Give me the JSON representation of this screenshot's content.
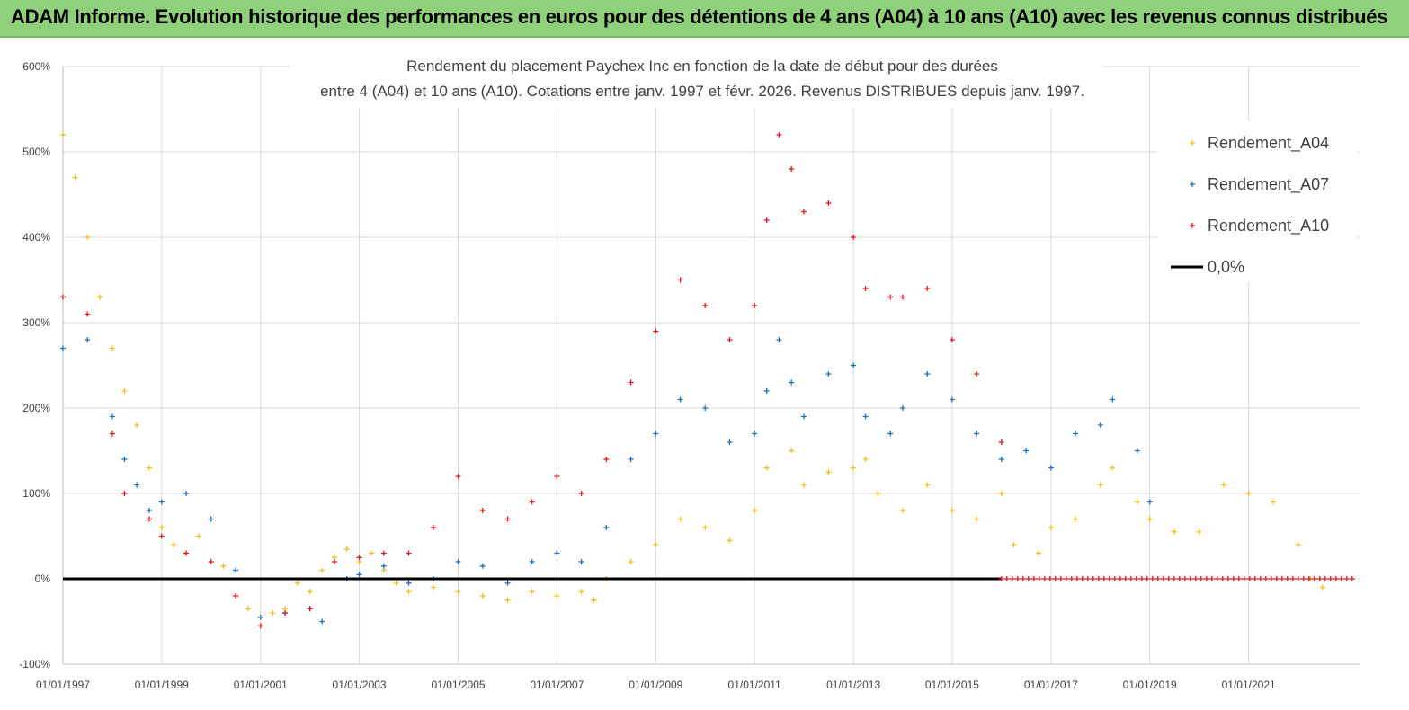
{
  "banner": {
    "title": "ADAM Informe. Evolution historique des performances en euros pour des détentions de 4 ans (A04) à 10 ans (A10) avec les revenus connus distribués"
  },
  "chart_data": {
    "type": "scatter",
    "title_line1": "Rendement du placement Paychex Inc en fonction de la date de début pour des durées",
    "title_line2": "entre 4 (A04) et 10 ans (A10).  Cotations entre janv. 1997 et févr. 2026. Revenus DISTRIBUES depuis janv. 1997.",
    "x_ticks": [
      "01/01/1997",
      "01/01/1999",
      "01/01/2001",
      "01/01/2003",
      "01/01/2005",
      "01/01/2007",
      "01/01/2009",
      "01/01/2011",
      "01/01/2013",
      "01/01/2015",
      "01/01/2017",
      "01/01/2019",
      "01/01/2021"
    ],
    "x_range": [
      "1997-01-01",
      "2023-04-01"
    ],
    "y_ticks": [
      "-100%",
      "0%",
      "100%",
      "200%",
      "300%",
      "400%",
      "500%",
      "600%"
    ],
    "ylim": [
      -100,
      600
    ],
    "grid": "horizontal-and-vertical",
    "legend_position": "top-right",
    "series": [
      {
        "name": "Rendement_A04",
        "color": "#f2c01e",
        "marker": "+",
        "points": [
          [
            "1997-01-01",
            520
          ],
          [
            "1997-04-01",
            470
          ],
          [
            "1997-07-01",
            400
          ],
          [
            "1997-10-01",
            330
          ],
          [
            "1998-01-01",
            270
          ],
          [
            "1998-04-01",
            220
          ],
          [
            "1998-07-01",
            180
          ],
          [
            "1998-10-01",
            130
          ],
          [
            "1999-01-01",
            60
          ],
          [
            "1999-04-01",
            40
          ],
          [
            "1999-07-01",
            30
          ],
          [
            "1999-10-01",
            50
          ],
          [
            "2000-01-01",
            70
          ],
          [
            "2000-04-01",
            15
          ],
          [
            "2000-07-01",
            -20
          ],
          [
            "2000-10-01",
            -35
          ],
          [
            "2001-01-01",
            -45
          ],
          [
            "2001-04-01",
            -40
          ],
          [
            "2001-07-01",
            -35
          ],
          [
            "2001-10-01",
            -5
          ],
          [
            "2002-01-01",
            -15
          ],
          [
            "2002-04-01",
            10
          ],
          [
            "2002-07-01",
            25
          ],
          [
            "2002-10-01",
            35
          ],
          [
            "2003-01-01",
            20
          ],
          [
            "2003-04-01",
            30
          ],
          [
            "2003-07-01",
            10
          ],
          [
            "2003-10-01",
            -5
          ],
          [
            "2004-01-01",
            -15
          ],
          [
            "2004-07-01",
            -10
          ],
          [
            "2005-01-01",
            -15
          ],
          [
            "2005-07-01",
            -20
          ],
          [
            "2006-01-01",
            -25
          ],
          [
            "2006-07-01",
            -15
          ],
          [
            "2007-01-01",
            -20
          ],
          [
            "2007-07-01",
            -15
          ],
          [
            "2007-10-01",
            -25
          ],
          [
            "2008-01-01",
            0
          ],
          [
            "2008-07-01",
            20
          ],
          [
            "2009-01-01",
            40
          ],
          [
            "2009-07-01",
            70
          ],
          [
            "2010-01-01",
            60
          ],
          [
            "2010-07-01",
            45
          ],
          [
            "2011-01-01",
            80
          ],
          [
            "2011-04-01",
            130
          ],
          [
            "2011-10-01",
            150
          ],
          [
            "2012-01-01",
            110
          ],
          [
            "2012-07-01",
            125
          ],
          [
            "2013-01-01",
            130
          ],
          [
            "2013-04-01",
            140
          ],
          [
            "2013-07-01",
            100
          ],
          [
            "2014-01-01",
            80
          ],
          [
            "2014-07-01",
            110
          ],
          [
            "2015-01-01",
            80
          ],
          [
            "2015-07-01",
            70
          ],
          [
            "2016-01-01",
            100
          ],
          [
            "2016-04-01",
            40
          ],
          [
            "2016-10-01",
            30
          ],
          [
            "2017-01-01",
            60
          ],
          [
            "2017-07-01",
            70
          ],
          [
            "2018-01-01",
            110
          ],
          [
            "2018-04-01",
            130
          ],
          [
            "2018-10-01",
            90
          ],
          [
            "2019-01-01",
            70
          ],
          [
            "2019-07-01",
            55
          ],
          [
            "2020-01-01",
            55
          ],
          [
            "2020-07-01",
            110
          ],
          [
            "2021-01-01",
            100
          ],
          [
            "2021-07-01",
            90
          ],
          [
            "2022-01-01",
            40
          ],
          [
            "2022-04-01",
            0
          ],
          [
            "2022-07-01",
            -10
          ]
        ]
      },
      {
        "name": "Rendement_A07",
        "color": "#1f6fc0",
        "marker": "+",
        "points": [
          [
            "1997-01-01",
            270
          ],
          [
            "1997-07-01",
            280
          ],
          [
            "1998-01-01",
            190
          ],
          [
            "1998-04-01",
            140
          ],
          [
            "1998-07-01",
            110
          ],
          [
            "1998-10-01",
            80
          ],
          [
            "1999-01-01",
            90
          ],
          [
            "1999-07-01",
            100
          ],
          [
            "2000-01-01",
            70
          ],
          [
            "2000-07-01",
            10
          ],
          [
            "2001-01-01",
            -45
          ],
          [
            "2001-07-01",
            -40
          ],
          [
            "2002-01-01",
            -35
          ],
          [
            "2002-04-01",
            -50
          ],
          [
            "2002-10-01",
            0
          ],
          [
            "2003-01-01",
            5
          ],
          [
            "2003-07-01",
            15
          ],
          [
            "2004-01-01",
            -5
          ],
          [
            "2004-07-01",
            0
          ],
          [
            "2005-01-01",
            20
          ],
          [
            "2005-07-01",
            15
          ],
          [
            "2006-01-01",
            -5
          ],
          [
            "2006-07-01",
            20
          ],
          [
            "2007-01-01",
            30
          ],
          [
            "2007-07-01",
            20
          ],
          [
            "2008-01-01",
            60
          ],
          [
            "2008-07-01",
            140
          ],
          [
            "2009-01-01",
            170
          ],
          [
            "2009-07-01",
            210
          ],
          [
            "2010-01-01",
            200
          ],
          [
            "2010-07-01",
            160
          ],
          [
            "2011-01-01",
            170
          ],
          [
            "2011-04-01",
            220
          ],
          [
            "2011-07-01",
            280
          ],
          [
            "2011-10-01",
            230
          ],
          [
            "2012-01-01",
            190
          ],
          [
            "2012-07-01",
            240
          ],
          [
            "2013-01-01",
            250
          ],
          [
            "2013-04-01",
            190
          ],
          [
            "2013-10-01",
            170
          ],
          [
            "2014-01-01",
            200
          ],
          [
            "2014-07-01",
            240
          ],
          [
            "2015-01-01",
            210
          ],
          [
            "2015-07-01",
            170
          ],
          [
            "2016-01-01",
            140
          ],
          [
            "2016-07-01",
            150
          ],
          [
            "2017-01-01",
            130
          ],
          [
            "2017-07-01",
            170
          ],
          [
            "2018-01-01",
            180
          ],
          [
            "2018-04-01",
            210
          ],
          [
            "2018-10-01",
            150
          ],
          [
            "2019-01-01",
            90
          ]
        ]
      },
      {
        "name": "Rendement_A10",
        "color": "#e8141e",
        "marker": "+",
        "points": [
          [
            "1997-01-01",
            330
          ],
          [
            "1997-07-01",
            310
          ],
          [
            "1998-01-01",
            170
          ],
          [
            "1998-04-01",
            100
          ],
          [
            "1998-10-01",
            70
          ],
          [
            "1999-01-01",
            50
          ],
          [
            "1999-07-01",
            30
          ],
          [
            "2000-01-01",
            20
          ],
          [
            "2000-07-01",
            -20
          ],
          [
            "2001-01-01",
            -55
          ],
          [
            "2001-07-01",
            -40
          ],
          [
            "2002-01-01",
            -35
          ],
          [
            "2002-07-01",
            20
          ],
          [
            "2003-01-01",
            25
          ],
          [
            "2003-07-01",
            30
          ],
          [
            "2004-01-01",
            30
          ],
          [
            "2004-07-01",
            60
          ],
          [
            "2005-01-01",
            120
          ],
          [
            "2005-07-01",
            80
          ],
          [
            "2006-01-01",
            70
          ],
          [
            "2006-07-01",
            90
          ],
          [
            "2007-01-01",
            120
          ],
          [
            "2007-07-01",
            100
          ],
          [
            "2008-01-01",
            140
          ],
          [
            "2008-07-01",
            230
          ],
          [
            "2009-01-01",
            290
          ],
          [
            "2009-07-01",
            350
          ],
          [
            "2010-01-01",
            320
          ],
          [
            "2010-07-01",
            280
          ],
          [
            "2011-01-01",
            320
          ],
          [
            "2011-04-01",
            420
          ],
          [
            "2011-07-01",
            520
          ],
          [
            "2011-10-01",
            480
          ],
          [
            "2012-01-01",
            430
          ],
          [
            "2012-07-01",
            440
          ],
          [
            "2013-01-01",
            400
          ],
          [
            "2013-04-01",
            340
          ],
          [
            "2013-10-01",
            330
          ],
          [
            "2014-01-01",
            330
          ],
          [
            "2014-07-01",
            340
          ],
          [
            "2015-01-01",
            280
          ],
          [
            "2015-07-01",
            240
          ],
          [
            "2016-01-01",
            160
          ]
        ]
      },
      {
        "name": "0,0%",
        "color": "#000000",
        "marker": "line",
        "points": [
          [
            "1997-01-01",
            0
          ],
          [
            "2016-01-01",
            0
          ]
        ]
      }
    ],
    "zero_run": {
      "series": "Rendement_A10",
      "from": "2016-01-01",
      "to": "2023-03-01",
      "value": 0
    }
  }
}
